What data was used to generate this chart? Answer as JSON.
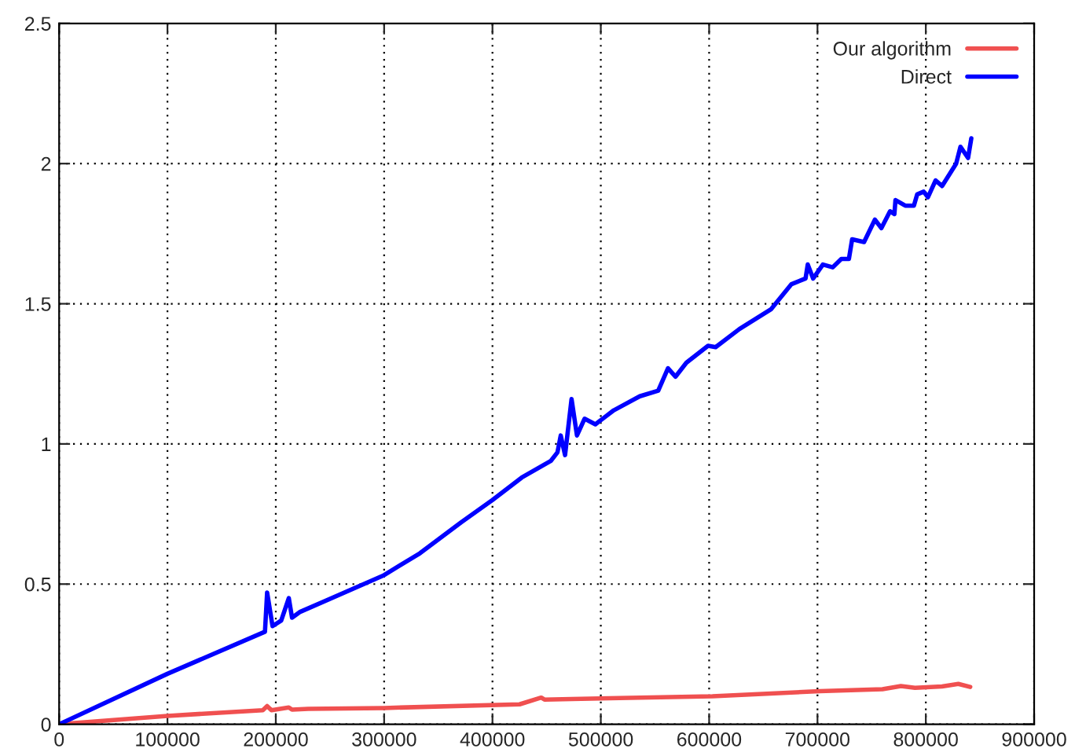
{
  "chart_data": {
    "type": "line",
    "xlim": [
      0,
      900000
    ],
    "ylim": [
      0,
      2.5
    ],
    "xticks": [
      0,
      100000,
      200000,
      300000,
      400000,
      500000,
      600000,
      700000,
      800000,
      900000
    ],
    "yticks": [
      0,
      0.5,
      1,
      1.5,
      2,
      2.5
    ],
    "grid": true,
    "legend": "top right",
    "marker": "none",
    "line_style": "solid",
    "series": [
      {
        "name": "Our algorithm",
        "color": "#f05050",
        "x": [
          0,
          100000,
          188000,
          192000,
          196000,
          212000,
          215000,
          230000,
          300000,
          425000,
          445000,
          448000,
          473000,
          603000,
          702000,
          760000,
          777000,
          790000,
          815000,
          830000,
          841000
        ],
        "values": [
          0,
          0.03,
          0.05,
          0.065,
          0.05,
          0.06,
          0.052,
          0.055,
          0.058,
          0.071,
          0.095,
          0.088,
          0.09,
          0.1,
          0.118,
          0.125,
          0.136,
          0.13,
          0.135,
          0.144,
          0.133
        ]
      },
      {
        "name": "Direct",
        "color": "#0000ff",
        "x": [
          0,
          100000,
          190000,
          192000,
          197000,
          205000,
          212000,
          215000,
          222000,
          299000,
          333000,
          371000,
          400000,
          427000,
          454000,
          460000,
          463000,
          467000,
          473000,
          478000,
          485000,
          495000,
          512000,
          536000,
          553000,
          562000,
          569000,
          579000,
          599000,
          606000,
          628000,
          657000,
          676000,
          689000,
          691000,
          696000,
          705000,
          714000,
          722000,
          729000,
          732000,
          743000,
          753000,
          759000,
          767000,
          771000,
          772000,
          781000,
          789000,
          792000,
          798000,
          802000,
          809000,
          815000,
          828000,
          832000,
          839000,
          842000
        ],
        "values": [
          0,
          0.18,
          0.33,
          0.47,
          0.35,
          0.37,
          0.45,
          0.38,
          0.4,
          0.53,
          0.61,
          0.72,
          0.8,
          0.88,
          0.94,
          0.97,
          1.03,
          0.96,
          1.16,
          1.03,
          1.09,
          1.07,
          1.12,
          1.17,
          1.19,
          1.27,
          1.24,
          1.29,
          1.35,
          1.345,
          1.41,
          1.48,
          1.57,
          1.59,
          1.64,
          1.59,
          1.64,
          1.63,
          1.66,
          1.66,
          1.73,
          1.72,
          1.8,
          1.77,
          1.83,
          1.82,
          1.87,
          1.85,
          1.85,
          1.89,
          1.9,
          1.88,
          1.94,
          1.92,
          2.0,
          2.06,
          2.02,
          2.09
        ]
      }
    ]
  }
}
